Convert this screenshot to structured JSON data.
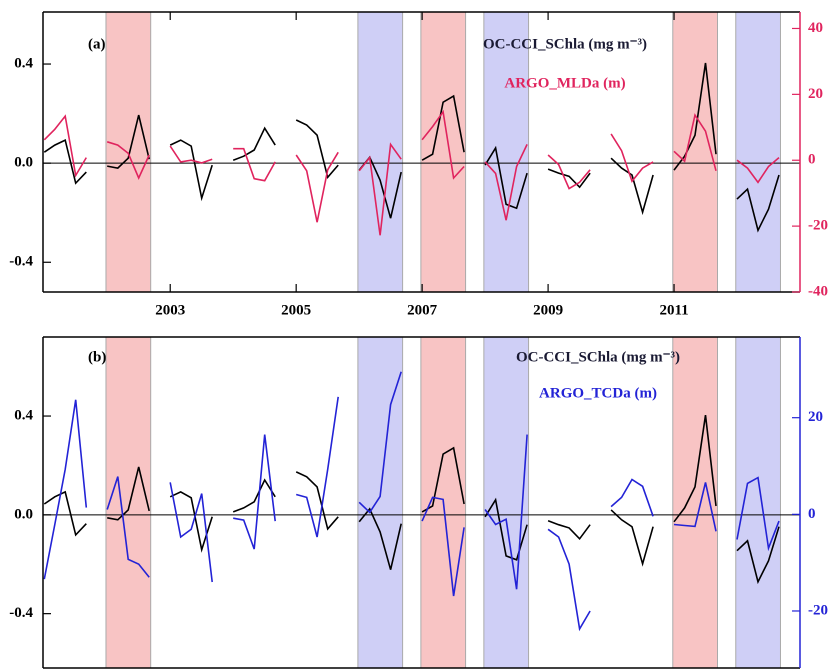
{
  "chart_data": [
    {
      "type": "line",
      "panel_label": "(a)",
      "xlim": [
        2000.98,
        2013.0
      ],
      "xticks": [
        2003,
        2005,
        2007,
        2009,
        2011
      ],
      "ylim": [
        -0.52,
        0.61
      ],
      "yticks": [
        -0.4,
        {
          "value": 0,
          "label": "0.0"
        },
        0.4
      ],
      "y2lim": [
        -40,
        45
      ],
      "y2ticks": [
        -40,
        -20,
        0,
        20,
        40
      ],
      "y2color": "#e0245e",
      "zero_line": true,
      "shaded_periods": [
        {
          "start": 2001.98,
          "end": 2002.69,
          "color": "#f8c4c4"
        },
        {
          "start": 2005.98,
          "end": 2006.69,
          "color": "#cfcff6"
        },
        {
          "start": 2006.98,
          "end": 2007.69,
          "color": "#f8c4c4"
        },
        {
          "start": 2007.98,
          "end": 2008.69,
          "color": "#cfcff6"
        },
        {
          "start": 2010.98,
          "end": 2011.69,
          "color": "#f8c4c4"
        },
        {
          "start": 2011.98,
          "end": 2012.69,
          "color": "#cfcff6"
        }
      ],
      "x": [
        2001,
        2001.167,
        2001.333,
        2001.5,
        2001.667,
        2001.833,
        2002,
        2002.167,
        2002.333,
        2002.5,
        2002.667,
        2002.833,
        2003,
        2003.167,
        2003.333,
        2003.5,
        2003.667,
        2003.833,
        2004,
        2004.167,
        2004.333,
        2004.5,
        2004.667,
        2004.833,
        2005,
        2005.167,
        2005.333,
        2005.5,
        2005.667,
        2005.833,
        2006,
        2006.167,
        2006.333,
        2006.5,
        2006.667,
        2006.833,
        2007,
        2007.167,
        2007.333,
        2007.5,
        2007.667,
        2007.833,
        2008,
        2008.167,
        2008.333,
        2008.5,
        2008.667,
        2008.833,
        2009,
        2009.167,
        2009.333,
        2009.5,
        2009.667,
        2009.833,
        2010,
        2010.167,
        2010.333,
        2010.5,
        2010.667,
        2010.833,
        2011,
        2011.167,
        2011.333,
        2011.5,
        2011.667,
        2011.833,
        2012,
        2012.167,
        2012.333,
        2012.5,
        2012.667,
        2012.833
      ],
      "series": [
        {
          "name": "OC-CCI_SChla (mg m⁻³)",
          "color": "#000000",
          "axis": "y",
          "values": [
            0.044,
            0.073,
            0.093,
            -0.081,
            -0.036,
            null,
            -0.012,
            -0.02,
            0.02,
            0.194,
            0.016,
            null,
            0.073,
            0.093,
            0.069,
            -0.141,
            -0.008,
            null,
            0.012,
            0.028,
            0.053,
            0.141,
            0.073,
            null,
            0.174,
            0.154,
            0.113,
            -0.057,
            -0.008,
            null,
            -0.028,
            0.024,
            -0.069,
            -0.222,
            -0.036,
            null,
            0.012,
            0.036,
            0.246,
            0.271,
            0.044,
            null,
            -0.008,
            0.061,
            -0.166,
            -0.182,
            -0.04,
            null,
            -0.024,
            -0.04,
            -0.053,
            -0.097,
            -0.04,
            null,
            0.02,
            -0.02,
            -0.048,
            -0.198,
            -0.048,
            null,
            -0.028,
            0.028,
            0.113,
            0.404,
            0.036,
            null,
            -0.145,
            -0.105,
            -0.271,
            -0.186,
            -0.048,
            null
          ]
        },
        {
          "name": "ARGO_MLDa (m)",
          "color": "#e0245e",
          "axis": "y2",
          "values": [
            6.2,
            9.4,
            13.4,
            -4.6,
            0.8,
            null,
            5.6,
            4.6,
            2.1,
            -5.4,
            1.6,
            null,
            4.3,
            -0.5,
            0,
            -0.8,
            0.3,
            null,
            3.5,
            3.5,
            -5.6,
            -6.2,
            -0.5,
            null,
            1.6,
            -3.2,
            -18.8,
            -2.9,
            2.4,
            null,
            -3.2,
            0.8,
            -22.8,
            4.8,
            0.3,
            null,
            6.2,
            10.2,
            14.7,
            -5.4,
            -1.9,
            null,
            -0.5,
            -4.0,
            -18.2,
            -1.9,
            4.8,
            null,
            1.6,
            -1.3,
            -8.6,
            -6.7,
            -2.9,
            null,
            8.0,
            2.9,
            -6.4,
            -2.4,
            -0.5,
            null,
            2.7,
            -0.3,
            13.7,
            8.8,
            -3.2,
            null,
            0,
            -2.4,
            -6.7,
            -1.9,
            0.8,
            null
          ]
        }
      ]
    },
    {
      "type": "line",
      "panel_label": "(b)",
      "xlim": [
        2000.98,
        2013.0
      ],
      "ylim": [
        -0.62,
        0.72
      ],
      "yticks": [
        -0.4,
        {
          "value": 0,
          "label": "0.0"
        },
        0.4
      ],
      "y2lim": [
        -31.8,
        36.7
      ],
      "y2ticks": [
        -20,
        0,
        20
      ],
      "y2color": "#2323d6",
      "zero_line": true,
      "shaded_periods": [
        {
          "start": 2001.98,
          "end": 2002.69,
          "color": "#f8c4c4"
        },
        {
          "start": 2005.98,
          "end": 2006.69,
          "color": "#cfcff6"
        },
        {
          "start": 2006.98,
          "end": 2007.69,
          "color": "#f8c4c4"
        },
        {
          "start": 2007.98,
          "end": 2008.69,
          "color": "#cfcff6"
        },
        {
          "start": 2010.98,
          "end": 2011.69,
          "color": "#f8c4c4"
        },
        {
          "start": 2011.98,
          "end": 2012.69,
          "color": "#cfcff6"
        }
      ],
      "x": [
        2001,
        2001.167,
        2001.333,
        2001.5,
        2001.667,
        2001.833,
        2002,
        2002.167,
        2002.333,
        2002.5,
        2002.667,
        2002.833,
        2003,
        2003.167,
        2003.333,
        2003.5,
        2003.667,
        2003.833,
        2004,
        2004.167,
        2004.333,
        2004.5,
        2004.667,
        2004.833,
        2005,
        2005.167,
        2005.333,
        2005.5,
        2005.667,
        2005.833,
        2006,
        2006.167,
        2006.333,
        2006.5,
        2006.667,
        2006.833,
        2007,
        2007.167,
        2007.333,
        2007.5,
        2007.667,
        2007.833,
        2008,
        2008.167,
        2008.333,
        2008.5,
        2008.667,
        2008.833,
        2009,
        2009.167,
        2009.333,
        2009.5,
        2009.667,
        2009.833,
        2010,
        2010.167,
        2010.333,
        2010.5,
        2010.667,
        2010.833,
        2011,
        2011.167,
        2011.333,
        2011.5,
        2011.667,
        2011.833,
        2012,
        2012.167,
        2012.333,
        2012.5,
        2012.667,
        2012.833
      ],
      "series": [
        {
          "name": "OC-CCI_SChla (mg m⁻³)",
          "color": "#000000",
          "axis": "y",
          "values": [
            0.044,
            0.073,
            0.093,
            -0.081,
            -0.036,
            null,
            -0.012,
            -0.02,
            0.02,
            0.194,
            0.016,
            null,
            0.073,
            0.093,
            0.069,
            -0.141,
            -0.008,
            null,
            0.012,
            0.028,
            0.053,
            0.141,
            0.073,
            null,
            0.174,
            0.154,
            0.113,
            -0.057,
            -0.008,
            null,
            -0.028,
            0.024,
            -0.069,
            -0.222,
            -0.036,
            null,
            0.012,
            0.036,
            0.246,
            0.271,
            0.044,
            null,
            -0.008,
            0.061,
            -0.166,
            -0.182,
            -0.04,
            null,
            -0.024,
            -0.04,
            -0.053,
            -0.097,
            -0.04,
            null,
            0.02,
            -0.02,
            -0.048,
            -0.198,
            -0.048,
            null,
            -0.028,
            0.028,
            0.113,
            0.404,
            0.036,
            null,
            -0.145,
            -0.105,
            -0.271,
            -0.186,
            -0.048,
            null
          ]
        },
        {
          "name": "ARGO_TCDa (m)",
          "color": "#2323d6",
          "axis": "y2",
          "values": [
            -13.4,
            -2.1,
            9.3,
            23.7,
            1.4,
            null,
            1.0,
            7.8,
            -9.3,
            -10.3,
            -13.0,
            null,
            6.6,
            -4.7,
            -3.1,
            4.3,
            -14.0,
            null,
            -0.8,
            -1.2,
            -7.2,
            16.5,
            -1.4,
            null,
            4.1,
            3.5,
            -4.7,
            9.3,
            24.3,
            null,
            2.5,
            0.4,
            3.7,
            22.7,
            29.5,
            null,
            -1.4,
            3.5,
            3.1,
            -16.9,
            -2.7,
            null,
            1.0,
            -2.1,
            -1.0,
            -15.5,
            16.5,
            null,
            -3.1,
            -4.7,
            -10.3,
            -23.7,
            -20.0,
            null,
            1.6,
            3.5,
            7.2,
            5.8,
            -0.4,
            null,
            -2.1,
            -2.3,
            -2.5,
            6.6,
            -3.5,
            null,
            -5.2,
            6.4,
            7.6,
            -7.0,
            -1.4,
            null
          ]
        }
      ]
    }
  ]
}
